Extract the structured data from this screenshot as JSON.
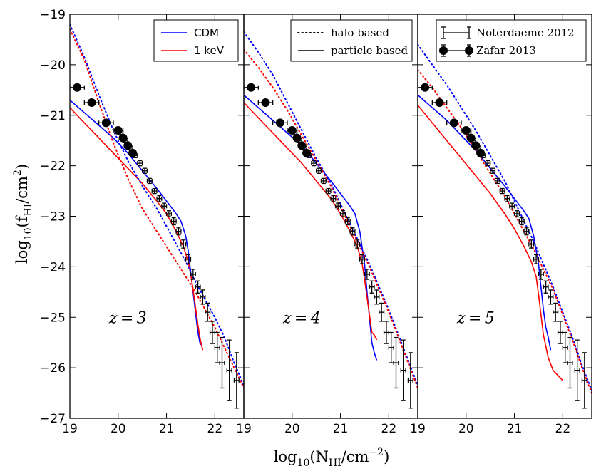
{
  "chart_data": {
    "type": "line",
    "title": "",
    "xlabel": "log10(N_HI/cm^-2)",
    "ylabel": "log10(f_HI/cm^2)",
    "xlabel_parts": {
      "pre": "log",
      "sub": "10",
      "mid": "(N",
      "sub2": "HI",
      "post": "/cm",
      "sup": "−2",
      "end": ")"
    },
    "ylabel_parts": {
      "pre": "log",
      "sub": "10",
      "mid": "(f",
      "sub2": "HI",
      "post": "/cm",
      "sup": "2",
      "end": ")"
    },
    "xlim": [
      19,
      22.6
    ],
    "ylim": [
      -27,
      -19
    ],
    "xticks": [
      "19",
      "20",
      "21",
      "22"
    ],
    "yticks": [
      "−19",
      "−20",
      "−21",
      "−22",
      "−23",
      "−24",
      "−25",
      "−26",
      "−27"
    ],
    "colors": {
      "cdm": "#0000ff",
      "kev": "#ff0000",
      "obs": "#000000"
    },
    "legends": [
      {
        "panel": 0,
        "entries": [
          {
            "label": "CDM",
            "color": "#0000ff",
            "style": "solid"
          },
          {
            "label": "1 keV",
            "color": "#ff0000",
            "style": "solid"
          }
        ]
      },
      {
        "panel": 1,
        "entries": [
          {
            "label": "halo based",
            "color": "#000000",
            "style": "dotted"
          },
          {
            "label": "particle based",
            "color": "#000000",
            "style": "solid"
          }
        ]
      },
      {
        "panel": 2,
        "entries": [
          {
            "label": "Noterdaeme 2012",
            "color": "#000000",
            "style": "errorbar"
          },
          {
            "label": "Zafar 2013",
            "color": "#000000",
            "style": "errorbar-dot"
          }
        ]
      }
    ],
    "panels": [
      {
        "label": "z=3",
        "series": [
          {
            "name": "CDM particle",
            "style": "solid",
            "color": "#0000ff",
            "x": [
              19,
              19.3,
              19.6,
              19.9,
              20.2,
              20.5,
              20.8,
              21.0,
              21.2,
              21.3,
              21.4,
              21.45,
              21.5,
              21.55,
              21.6,
              21.65,
              21.7
            ],
            "y": [
              -20.7,
              -20.95,
              -21.2,
              -21.45,
              -21.75,
              -22.1,
              -22.45,
              -22.7,
              -22.95,
              -23.1,
              -23.4,
              -23.7,
              -24.1,
              -24.5,
              -24.9,
              -25.3,
              -25.55
            ]
          },
          {
            "name": "1 keV particle",
            "style": "solid",
            "color": "#ff0000",
            "x": [
              19,
              19.3,
              19.6,
              19.9,
              20.2,
              20.5,
              20.8,
              21.0,
              21.2,
              21.35,
              21.45,
              21.5,
              21.55,
              21.6,
              21.65,
              21.7,
              21.75
            ],
            "y": [
              -20.85,
              -21.15,
              -21.45,
              -21.75,
              -22.05,
              -22.35,
              -22.7,
              -22.95,
              -23.3,
              -23.6,
              -23.9,
              -24.15,
              -24.45,
              -24.8,
              -25.15,
              -25.45,
              -25.65
            ]
          },
          {
            "name": "CDM halo",
            "style": "dotted",
            "color": "#0000ff",
            "x": [
              19,
              19.3,
              19.6,
              19.9,
              20.2,
              20.5,
              20.8,
              21.0,
              21.2,
              21.4,
              21.6,
              21.8,
              22.0,
              22.2,
              22.4,
              22.6
            ],
            "y": [
              -19.2,
              -19.85,
              -20.6,
              -21.3,
              -21.9,
              -22.4,
              -22.85,
              -23.2,
              -23.55,
              -23.9,
              -24.3,
              -24.65,
              -25.0,
              -25.4,
              -25.9,
              -26.35
            ]
          },
          {
            "name": "1 keV halo",
            "style": "dotted",
            "color": "#ff0000",
            "x": [
              19,
              19.3,
              19.6,
              19.9,
              20.2,
              20.5,
              20.8,
              21.0,
              21.2,
              21.4,
              21.6,
              21.8,
              22.0,
              22.2,
              22.4,
              22.6
            ],
            "y": [
              -19.3,
              -19.9,
              -20.75,
              -21.55,
              -22.25,
              -22.85,
              -23.3,
              -23.6,
              -23.9,
              -24.2,
              -24.5,
              -24.85,
              -25.2,
              -25.6,
              -26.0,
              -26.4
            ]
          }
        ]
      },
      {
        "label": "z=4",
        "series": [
          {
            "name": "CDM particle",
            "style": "solid",
            "color": "#0000ff",
            "x": [
              19,
              19.3,
              19.6,
              19.9,
              20.2,
              20.5,
              20.8,
              21.0,
              21.2,
              21.3,
              21.4,
              21.5,
              21.55,
              21.6,
              21.65,
              21.7,
              21.75
            ],
            "y": [
              -20.6,
              -20.85,
              -21.1,
              -21.35,
              -21.6,
              -21.95,
              -22.3,
              -22.55,
              -22.8,
              -22.95,
              -23.3,
              -23.95,
              -24.5,
              -25.0,
              -25.5,
              -25.7,
              -25.85
            ]
          },
          {
            "name": "1 keV particle",
            "style": "solid",
            "color": "#ff0000",
            "x": [
              19,
              19.3,
              19.6,
              19.9,
              20.2,
              20.5,
              20.8,
              21.0,
              21.2,
              21.35,
              21.45,
              21.5,
              21.55,
              21.6,
              21.65,
              21.7,
              21.75
            ],
            "y": [
              -20.75,
              -21.05,
              -21.35,
              -21.65,
              -21.95,
              -22.3,
              -22.65,
              -22.95,
              -23.3,
              -23.6,
              -23.95,
              -24.25,
              -24.6,
              -24.95,
              -25.3,
              -25.35,
              -25.45
            ]
          },
          {
            "name": "CDM halo",
            "style": "dotted",
            "color": "#0000ff",
            "x": [
              19,
              19.3,
              19.6,
              19.9,
              20.2,
              20.5,
              20.8,
              21.0,
              21.2,
              21.4,
              21.6,
              21.8,
              22.0,
              22.2,
              22.4,
              22.6
            ],
            "y": [
              -19.35,
              -19.75,
              -20.2,
              -20.75,
              -21.3,
              -21.85,
              -22.35,
              -22.75,
              -23.15,
              -23.55,
              -23.95,
              -24.4,
              -24.85,
              -25.35,
              -25.85,
              -26.35
            ]
          },
          {
            "name": "1 keV halo",
            "style": "dotted",
            "color": "#ff0000",
            "x": [
              19,
              19.3,
              19.6,
              19.9,
              20.2,
              20.5,
              20.8,
              21.0,
              21.2,
              21.4,
              21.6,
              21.8,
              22.0,
              22.2,
              22.4,
              22.6
            ],
            "y": [
              -19.7,
              -20.05,
              -20.45,
              -20.9,
              -21.4,
              -21.9,
              -22.4,
              -22.8,
              -23.2,
              -23.6,
              -24.0,
              -24.45,
              -24.9,
              -25.4,
              -25.9,
              -26.4
            ]
          }
        ]
      },
      {
        "label": "z=5",
        "series": [
          {
            "name": "CDM particle",
            "style": "solid",
            "color": "#0000ff",
            "x": [
              19,
              19.3,
              19.6,
              19.9,
              20.2,
              20.5,
              20.8,
              21.0,
              21.2,
              21.3,
              21.4,
              21.5,
              21.55,
              21.6,
              21.65,
              21.7,
              21.75
            ],
            "y": [
              -20.6,
              -20.85,
              -21.1,
              -21.4,
              -21.7,
              -22.05,
              -22.4,
              -22.65,
              -22.9,
              -23.05,
              -23.4,
              -23.95,
              -24.4,
              -24.85,
              -25.2,
              -25.4,
              -25.65
            ]
          },
          {
            "name": "1 keV particle",
            "style": "solid",
            "color": "#ff0000",
            "x": [
              19,
              19.3,
              19.6,
              19.9,
              20.2,
              20.5,
              20.8,
              21.0,
              21.2,
              21.35,
              21.45,
              21.5,
              21.55,
              21.6,
              21.7,
              21.8,
              21.9,
              22.0
            ],
            "y": [
              -20.8,
              -21.15,
              -21.5,
              -21.85,
              -22.2,
              -22.55,
              -22.95,
              -23.25,
              -23.6,
              -23.9,
              -24.2,
              -24.55,
              -24.95,
              -25.35,
              -25.8,
              -26.05,
              -26.15,
              -26.25
            ]
          },
          {
            "name": "CDM halo",
            "style": "dotted",
            "color": "#0000ff",
            "x": [
              19,
              19.3,
              19.6,
              19.9,
              20.2,
              20.5,
              20.8,
              21.0,
              21.2,
              21.4,
              21.6,
              21.8,
              22.0,
              22.2,
              22.4,
              22.6
            ],
            "y": [
              -19.6,
              -20.0,
              -20.4,
              -20.85,
              -21.3,
              -21.8,
              -22.3,
              -22.7,
              -23.1,
              -23.5,
              -23.95,
              -24.4,
              -24.9,
              -25.4,
              -25.95,
              -26.45
            ]
          },
          {
            "name": "1 keV halo",
            "style": "dotted",
            "color": "#ff0000",
            "x": [
              19,
              19.3,
              19.6,
              19.9,
              20.2,
              20.5,
              20.8,
              21.0,
              21.2,
              21.4,
              21.6,
              21.8,
              22.0,
              22.2,
              22.4,
              22.6
            ],
            "y": [
              -20.1,
              -20.45,
              -20.85,
              -21.25,
              -21.7,
              -22.15,
              -22.6,
              -22.95,
              -23.3,
              -23.65,
              -24.05,
              -24.45,
              -24.95,
              -25.45,
              -26.0,
              -26.5
            ]
          }
        ]
      }
    ],
    "observations": {
      "noterdaeme_2012": {
        "x": [
          20.05,
          20.15,
          20.25,
          20.35,
          20.45,
          20.55,
          20.65,
          20.75,
          20.85,
          20.95,
          21.05,
          21.15,
          21.25,
          21.35,
          21.45,
          21.55,
          21.65,
          21.75,
          21.85,
          21.95,
          22.05,
          22.15,
          22.3,
          22.45
        ],
        "y": [
          -21.35,
          -21.5,
          -21.65,
          -21.8,
          -21.95,
          -22.1,
          -22.3,
          -22.5,
          -22.65,
          -22.8,
          -22.95,
          -23.1,
          -23.3,
          -23.55,
          -23.85,
          -24.15,
          -24.4,
          -24.6,
          -24.9,
          -25.3,
          -25.6,
          -25.9,
          -26.05,
          -26.25
        ],
        "yerr": [
          0.04,
          0.04,
          0.04,
          0.04,
          0.05,
          0.05,
          0.05,
          0.05,
          0.06,
          0.06,
          0.06,
          0.07,
          0.07,
          0.08,
          0.09,
          0.1,
          0.12,
          0.14,
          0.18,
          0.22,
          0.3,
          0.5,
          0.6,
          0.55
        ],
        "xerr": 0.05
      },
      "zafar_2013": {
        "x": [
          19.15,
          19.45,
          19.75,
          20.0,
          20.1,
          20.2,
          20.3
        ],
        "y": [
          -20.45,
          -20.75,
          -21.15,
          -21.3,
          -21.45,
          -21.6,
          -21.75
        ],
        "yerr": [
          0.08,
          0.08,
          0.08,
          0.08,
          0.07,
          0.07,
          0.07
        ],
        "xerr": [
          0.15,
          0.15,
          0.15,
          0.1,
          0.05,
          0.05,
          0.05
        ]
      }
    }
  }
}
